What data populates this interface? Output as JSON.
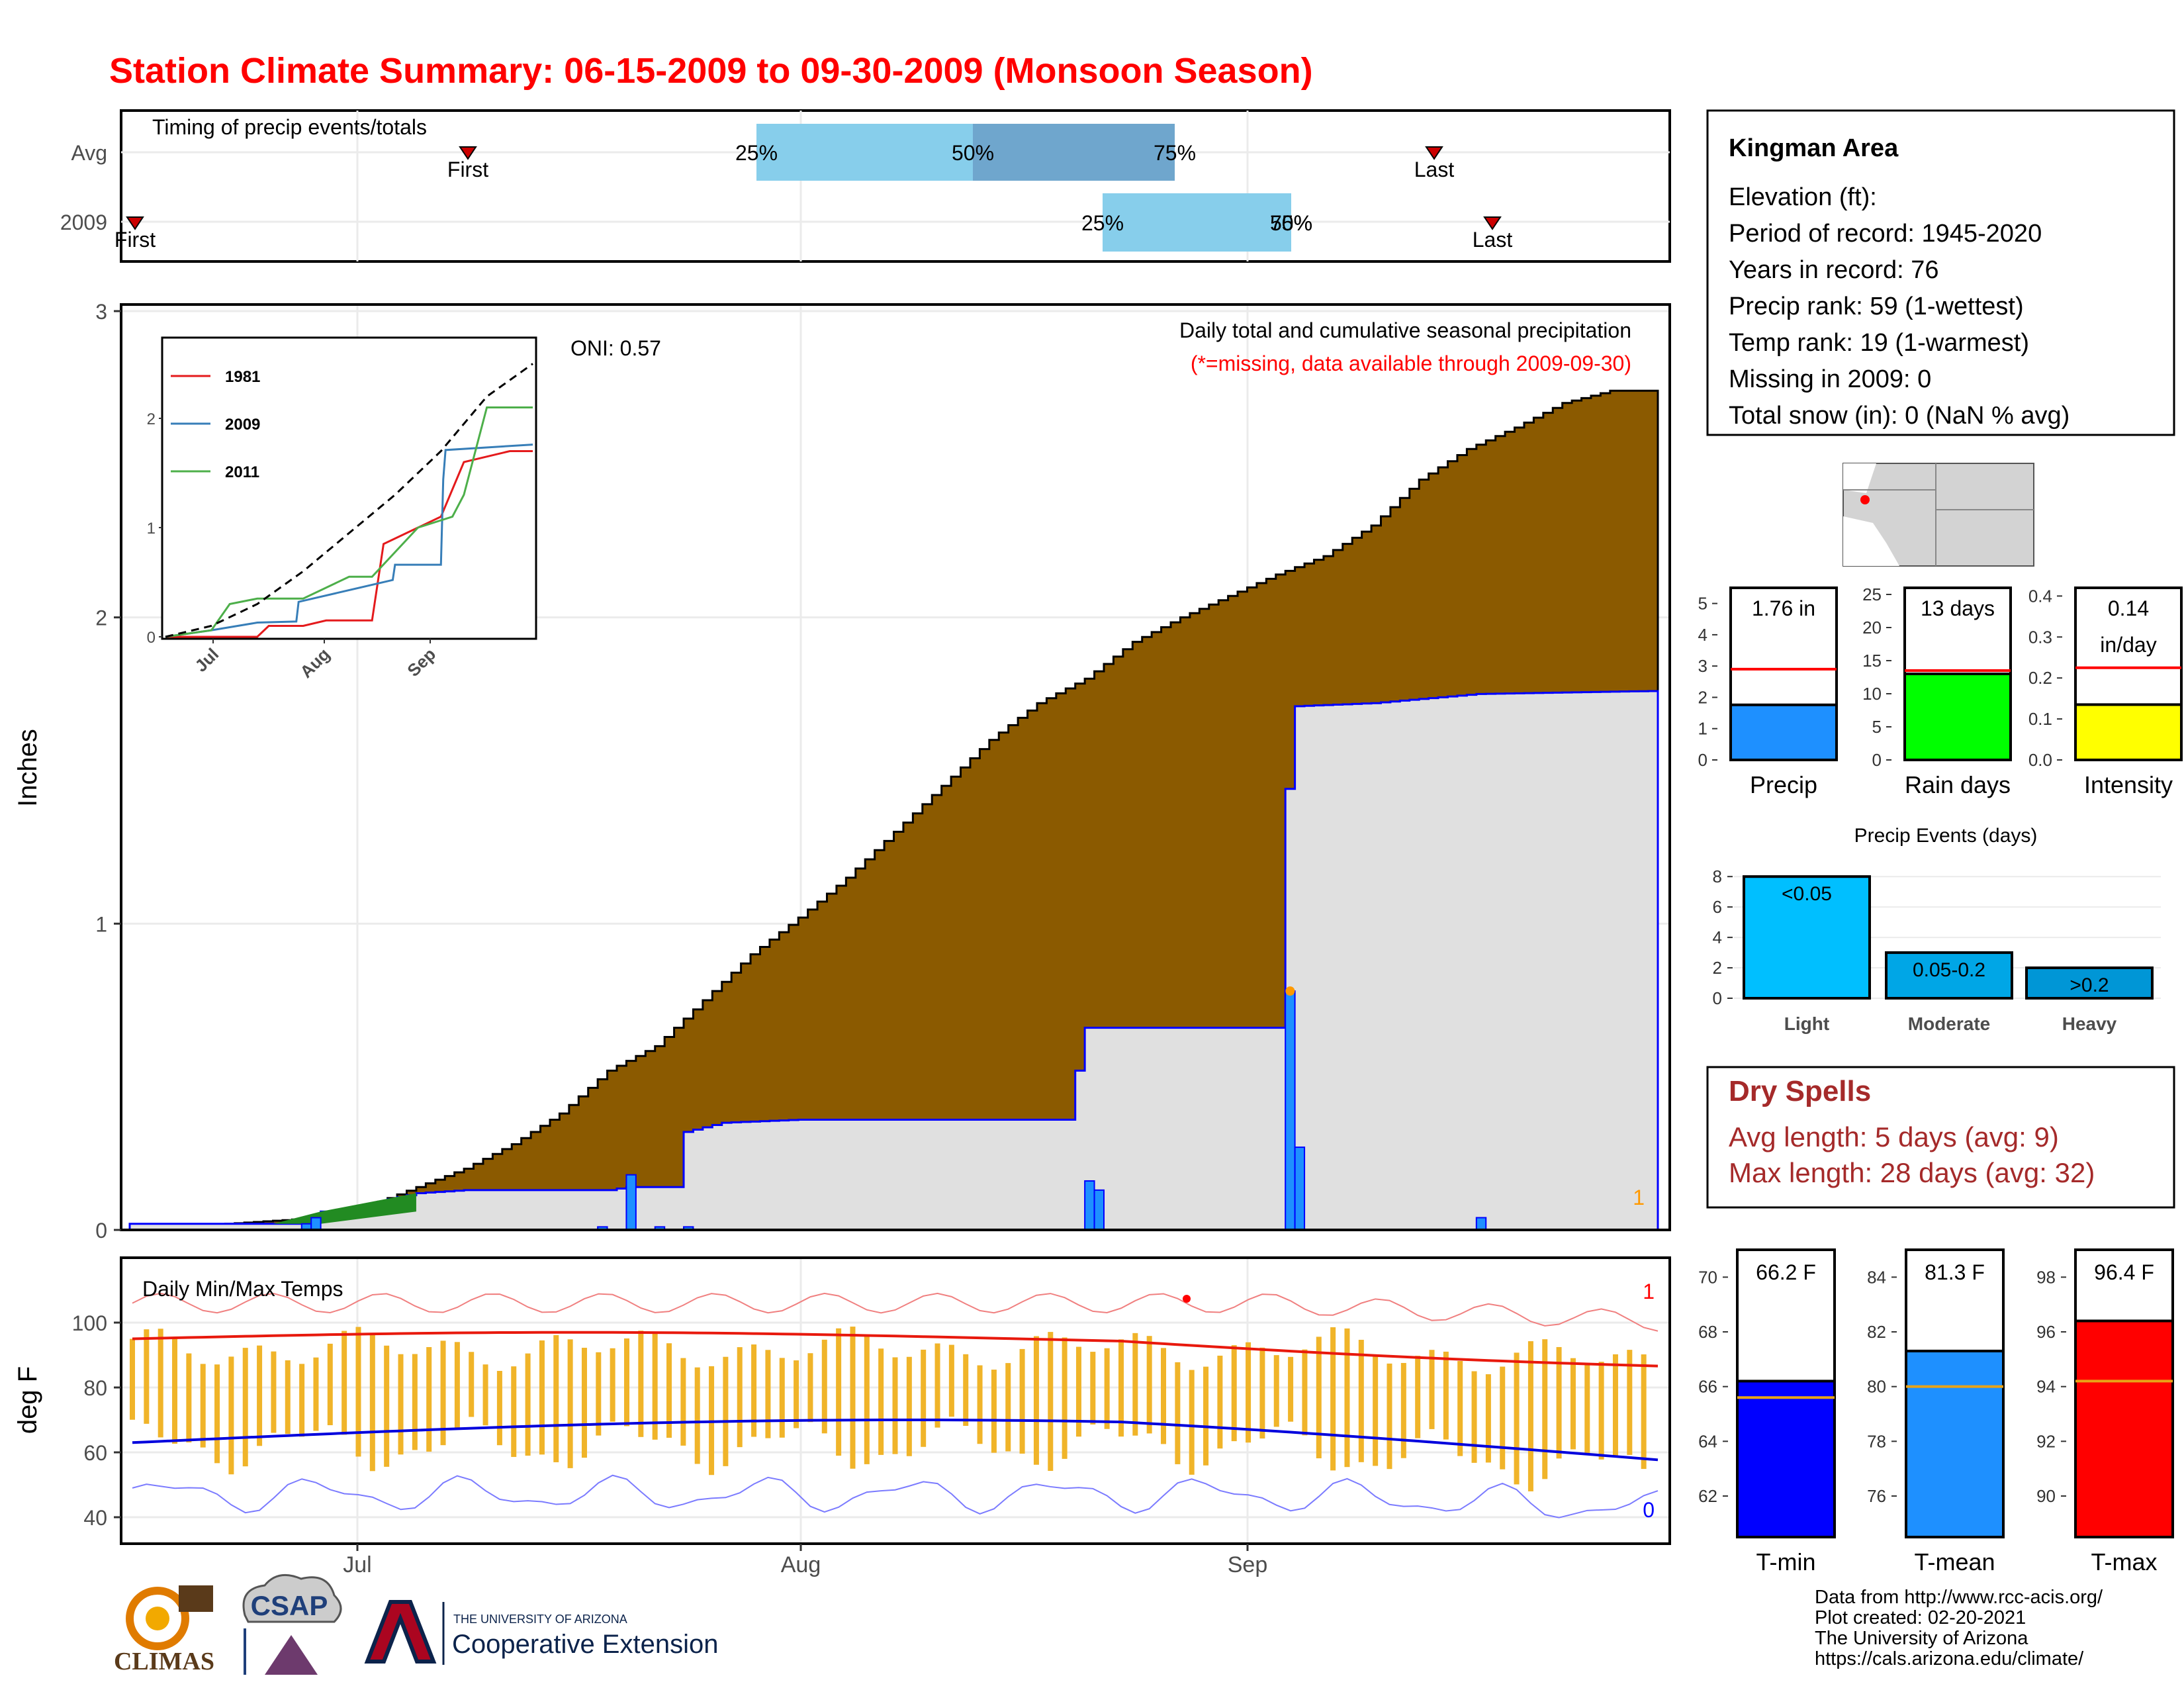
{
  "title": "Station Climate Summary: 06-15-2009 to 09-30-2009 (Monsoon Season)",
  "colors": {
    "title": "#ff0000",
    "cumulative_avg_fill": "#8b5a00",
    "cumulative_obs_fill": "#e0e0e0",
    "obs_line": "#0000ff",
    "daily_bar": "#1e90ff",
    "temp_bar": "#f0b429",
    "tmax_avg": "#e8190d",
    "tmin_avg": "#0000dd",
    "dry_spell_text": "#a52a2a",
    "timing_box_light": "#87ceeb",
    "timing_box_dark": "#6fa6cd",
    "marker": "#cc0000"
  },
  "timing": {
    "title": "Timing of precip events/totals",
    "rows": [
      "Avg",
      "2009"
    ],
    "avg": {
      "first_label": "First",
      "last_label": "Last",
      "p25": "25%",
      "p50": "50%",
      "p75": "75%"
    },
    "y2009": {
      "first_label": "First",
      "last_label": "Last",
      "p25": "25%",
      "p5075": "50%",
      "p75": "75%"
    }
  },
  "precip_panel": {
    "ylabel": "Inches",
    "yticks": [
      "0",
      "1",
      "2",
      "3"
    ],
    "header": "Daily total and cumulative seasonal precipitation",
    "note": "(*=missing, data available through 2009-09-30)",
    "oni": "ONI: 0.57",
    "corner_label": "1"
  },
  "inset": {
    "legend": [
      {
        "name": "1981",
        "color": "#e41a1c"
      },
      {
        "name": "2009",
        "color": "#377eb8"
      },
      {
        "name": "2011",
        "color": "#4daf4a"
      }
    ],
    "yticks": [
      "0",
      "1",
      "2"
    ],
    "xticks": [
      "Jul",
      "Aug",
      "Sep"
    ]
  },
  "temp_panel": {
    "ylabel": "deg F",
    "title": "Daily Min/Max Temps",
    "yticks": [
      "40",
      "60",
      "80",
      "100"
    ],
    "xticks": [
      "Jul",
      "Aug",
      "Sep"
    ],
    "label_max": "1",
    "label_min": "0"
  },
  "info": {
    "station": "Kingman Area",
    "lines": [
      "Elevation (ft):",
      "Period of record: 1945-2020",
      "Years in record: 76",
      "Precip rank: 59 (1-wettest)",
      "Temp rank: 19 (1-warmest)",
      "Missing in 2009: 0",
      "Total snow (in): 0 (NaN % avg)"
    ]
  },
  "summary_bars": [
    {
      "label": "Precip",
      "value_text": "1.76 in",
      "value": 1.76,
      "avg": 2.9,
      "ymax": 5.5,
      "yticks": [
        "0",
        "1",
        "2",
        "3",
        "4",
        "5"
      ],
      "tick_vals": [
        0,
        1,
        2,
        3,
        4,
        5
      ],
      "color": "#1e90ff"
    },
    {
      "label": "Rain days",
      "value_text": "13 days",
      "value": 13,
      "avg": 13.5,
      "ymax": 26,
      "yticks": [
        "0",
        "5",
        "10",
        "15",
        "20",
        "25"
      ],
      "tick_vals": [
        0,
        5,
        10,
        15,
        20,
        25
      ],
      "color": "#00ff00"
    },
    {
      "label": "Intensity",
      "value_text": "0.14",
      "value_text2": "in/day",
      "value": 0.135,
      "avg": 0.225,
      "ymax": 0.42,
      "yticks": [
        "0.0",
        "0.1",
        "0.2",
        "0.3",
        "0.4"
      ],
      "tick_vals": [
        0,
        0.1,
        0.2,
        0.3,
        0.4
      ],
      "color": "#ffff00"
    }
  ],
  "events": {
    "title": "Precip Events (days)",
    "yticks": [
      "0",
      "2",
      "4",
      "6",
      "8"
    ],
    "bars": [
      {
        "category": "Light",
        "label": "<0.05",
        "value": 8,
        "color": "#00bfff"
      },
      {
        "category": "Moderate",
        "label": "0.05-0.2",
        "value": 3,
        "color": "#00a6e6"
      },
      {
        "category": "Heavy",
        "label": ">0.2",
        "value": 2,
        "color": "#0096d6"
      }
    ]
  },
  "dry_spells": {
    "title": "Dry Spells",
    "avg_length": "Avg length: 5 days (avg: 9)",
    "max_length": "Max length: 28 days (avg: 32)"
  },
  "temp_bars": [
    {
      "label": "T-min",
      "value_text": "66.2 F",
      "value": 66.2,
      "avg": 65.6,
      "ymin": 60.5,
      "ymax": 71,
      "yticks": [
        "62",
        "64",
        "66",
        "68",
        "70"
      ],
      "tick_vals": [
        62,
        64,
        66,
        68,
        70
      ],
      "color": "#0000ff"
    },
    {
      "label": "T-mean",
      "value_text": "81.3 F",
      "value": 81.3,
      "avg": 80.0,
      "ymin": 74.5,
      "ymax": 85,
      "yticks": [
        "76",
        "78",
        "80",
        "82",
        "84"
      ],
      "tick_vals": [
        76,
        78,
        80,
        82,
        84
      ],
      "color": "#1e90ff"
    },
    {
      "label": "T-max",
      "value_text": "96.4 F",
      "value": 96.4,
      "avg": 94.2,
      "ymin": 88.5,
      "ymax": 99,
      "yticks": [
        "90",
        "92",
        "94",
        "96",
        "98"
      ],
      "tick_vals": [
        90,
        92,
        94,
        96,
        98
      ],
      "color": "#ff0000"
    }
  ],
  "footer": {
    "credits": [
      "Data from http://www.rcc-acis.org/",
      "Plot created: 02-20-2021",
      "The University of Arizona",
      "https://cals.arizona.edu/climate/"
    ],
    "logo_climas": "CLIMAS",
    "logo_csap": "CSAP",
    "ua_small": "THE UNIVERSITY OF ARIZONA",
    "ua_big": "Cooperative Extension"
  },
  "chart_data": {
    "type": "area",
    "x_start": "2009-06-15",
    "x_end": "2009-09-30",
    "ylim": [
      0,
      3
    ],
    "cumulative_avg": [
      [
        0,
        0.01
      ],
      [
        10,
        0.02
      ],
      [
        20,
        0.04
      ],
      [
        25,
        0.08
      ],
      [
        30,
        0.14
      ],
      [
        35,
        0.2
      ],
      [
        40,
        0.28
      ],
      [
        45,
        0.38
      ],
      [
        50,
        0.52
      ],
      [
        55,
        0.6
      ],
      [
        60,
        0.75
      ],
      [
        65,
        0.9
      ],
      [
        70,
        1.02
      ],
      [
        75,
        1.15
      ],
      [
        80,
        1.3
      ],
      [
        85,
        1.45
      ],
      [
        90,
        1.6
      ],
      [
        95,
        1.72
      ],
      [
        100,
        1.8
      ],
      [
        105,
        1.92
      ],
      [
        110,
        2.0
      ],
      [
        115,
        2.07
      ],
      [
        120,
        2.14
      ],
      [
        125,
        2.2
      ],
      [
        130,
        2.3
      ],
      [
        135,
        2.45
      ],
      [
        140,
        2.55
      ],
      [
        145,
        2.62
      ],
      [
        150,
        2.7
      ],
      [
        155,
        2.74
      ],
      [
        160,
        2.74
      ]
    ],
    "cumulative_obs": [
      [
        0,
        0.02
      ],
      [
        15,
        0.02
      ],
      [
        18,
        0.02
      ],
      [
        20,
        0.06
      ],
      [
        25,
        0.06
      ],
      [
        27,
        0.1
      ],
      [
        30,
        0.12
      ],
      [
        35,
        0.13
      ],
      [
        40,
        0.13
      ],
      [
        50,
        0.13
      ],
      [
        52,
        0.14
      ],
      [
        57,
        0.14
      ],
      [
        58,
        0.32
      ],
      [
        62,
        0.35
      ],
      [
        70,
        0.36
      ],
      [
        98,
        0.36
      ],
      [
        99,
        0.52
      ],
      [
        100,
        0.66
      ],
      [
        120,
        0.66
      ],
      [
        121,
        1.44
      ],
      [
        122,
        1.71
      ],
      [
        130,
        1.72
      ],
      [
        141,
        1.75
      ],
      [
        160,
        1.76
      ]
    ],
    "daily_bars": [
      [
        18,
        0.02
      ],
      [
        19,
        0.04
      ],
      [
        49,
        0.01
      ],
      [
        52,
        0.18
      ],
      [
        55,
        0.01
      ],
      [
        58,
        0.01
      ],
      [
        100,
        0.16
      ],
      [
        101,
        0.13
      ],
      [
        121,
        0.78
      ],
      [
        122,
        0.27
      ],
      [
        141,
        0.04
      ]
    ]
  }
}
